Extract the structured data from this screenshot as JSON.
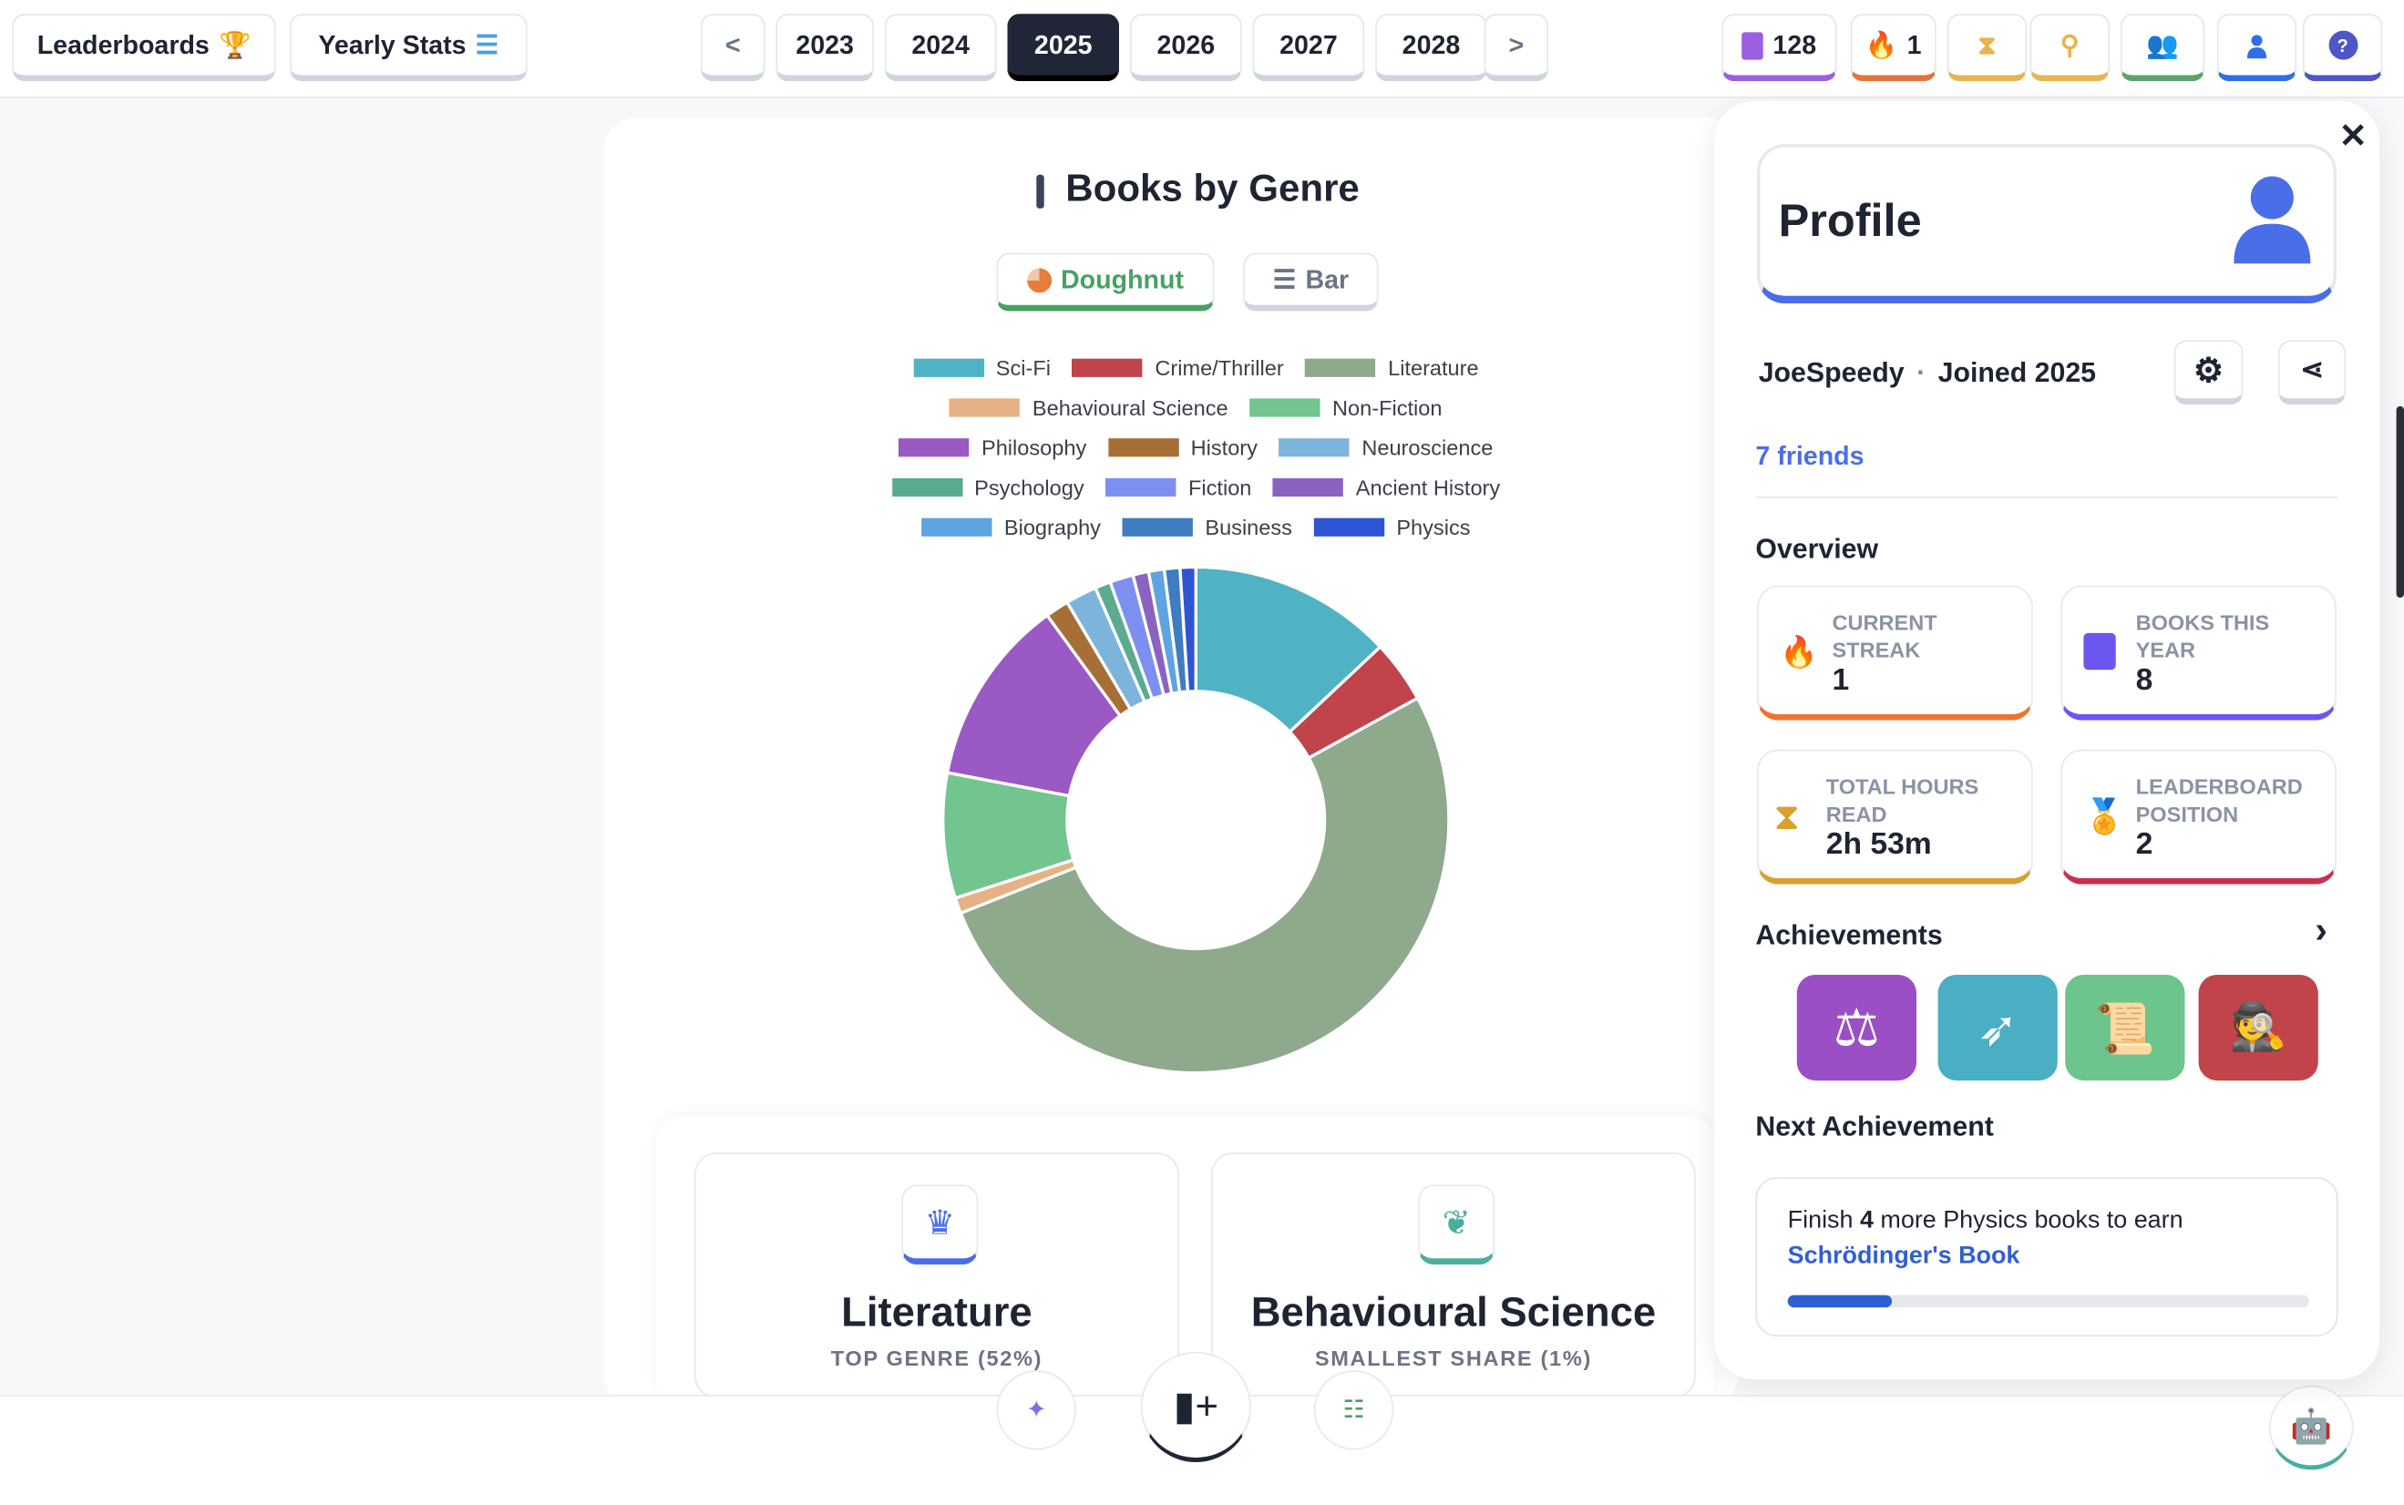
{
  "topbar": {
    "leaderboards": "Leaderboards",
    "yearly_stats": "Yearly Stats",
    "prev": "<",
    "next": ">",
    "years": [
      "2023",
      "2024",
      "2025",
      "2026",
      "2027",
      "2028"
    ],
    "selected_year": "2025",
    "books_count": "128",
    "streak_count": "1"
  },
  "chart_card": {
    "title": "Books by Genre",
    "doughnut_label": "Doughnut",
    "bar_label": "Bar"
  },
  "chart_data": {
    "type": "pie",
    "variant": "doughnut",
    "title": "Books by Genre",
    "legend_placement": "top",
    "unit": "percent",
    "categories": [
      "Sci-Fi",
      "Crime/Thriller",
      "Literature",
      "Behavioural Science",
      "Non-Fiction",
      "Philosophy",
      "History",
      "Neuroscience",
      "Psychology",
      "Fiction",
      "Ancient History",
      "Biography",
      "Business",
      "Physics"
    ],
    "values": [
      13,
      4,
      52,
      1,
      8,
      12,
      1.5,
      2,
      1,
      1.5,
      1,
      1,
      1,
      1
    ],
    "colors": [
      "#4fb3c4",
      "#c0444a",
      "#8fa98c",
      "#e6b184",
      "#72c58f",
      "#9b59c4",
      "#a66f35",
      "#7db4db",
      "#5bab91",
      "#7d8ff0",
      "#8a62c0",
      "#5fa4e0",
      "#3f7dc0",
      "#2f55d4"
    ]
  },
  "genre_cards": [
    {
      "title": "Literature",
      "subtitle": "TOP GENRE (52%)"
    },
    {
      "title": "Behavioural Science",
      "subtitle": "SMALLEST SHARE (1%)"
    }
  ],
  "profile": {
    "title": "Profile",
    "username": "JoeSpeedy",
    "dot": "·",
    "joined": "Joined 2025",
    "friends": "7 friends",
    "overview": "Overview",
    "stats": [
      {
        "label": "CURRENT STREAK",
        "value": "1",
        "color": "#ee7430"
      },
      {
        "label": "BOOKS THIS YEAR",
        "value": "8",
        "color": "#6b57f0"
      },
      {
        "label": "TOTAL HOURS READ",
        "value": "2h 53m",
        "color": "#d9a030"
      },
      {
        "label": "LEADERBOARD POSITION",
        "value": "2",
        "color": "#c9304f"
      }
    ],
    "achievements": "Achievements",
    "achievement_colors": [
      "#9b4fc4",
      "#4aaec4",
      "#6cc58c",
      "#c0444a"
    ],
    "next_achievement": "Next Achievement",
    "next_pre": "Finish ",
    "next_count": "4",
    "next_post": " more Physics books to earn",
    "next_name": "Schrödinger's Book",
    "next_progress": 0.2
  },
  "accent": "#4a6ee8"
}
